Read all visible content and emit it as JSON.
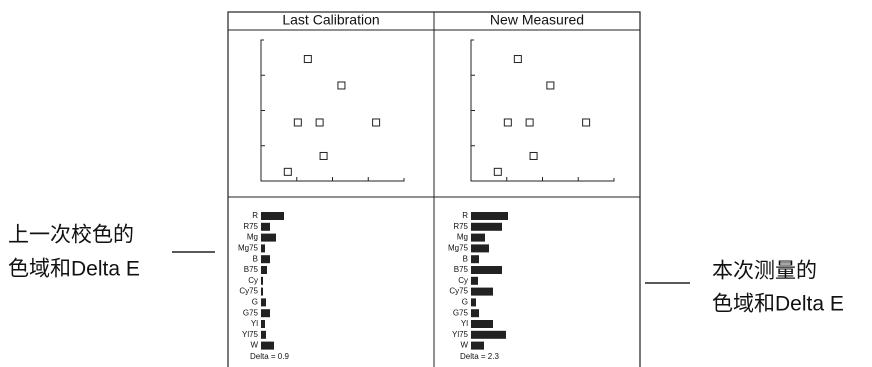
{
  "headers": [
    "Last Calibration",
    "New Measured"
  ],
  "panels": [
    {
      "scatter": {
        "xlim": [
          0,
          4
        ],
        "ylim": [
          0,
          4
        ],
        "xticks": [
          1,
          2,
          3
        ],
        "yticks": [
          1,
          2,
          3
        ],
        "x": [
          1.31,
          2.25,
          1.03,
          1.64,
          3.22,
          1.75,
          0.75
        ],
        "y": [
          3.46,
          2.71,
          1.66,
          1.66,
          1.66,
          0.71,
          0.26
        ]
      },
      "bars": {
        "categories": [
          "R",
          "R75",
          "Mg",
          "Mg75",
          "B",
          "B75",
          "Cy",
          "Cy75",
          "G",
          "G75",
          "Yl",
          "Yl75",
          "W"
        ],
        "values": [
          23,
          9,
          15,
          4,
          9,
          6,
          2,
          2,
          5,
          9,
          4,
          5,
          13
        ]
      },
      "delta": "Delta = 0.9"
    },
    {
      "scatter": {
        "xlim": [
          0,
          4
        ],
        "ylim": [
          0,
          4
        ],
        "xticks": [
          1,
          2,
          3
        ],
        "yticks": [
          1,
          2,
          3
        ],
        "x": [
          1.31,
          2.22,
          1.03,
          1.64,
          3.22,
          1.75,
          0.75
        ],
        "y": [
          3.46,
          2.71,
          1.66,
          1.66,
          1.66,
          0.71,
          0.26
        ]
      },
      "bars": {
        "categories": [
          "R",
          "R75",
          "Mg",
          "Mg75",
          "B",
          "B75",
          "Cy",
          "Cy75",
          "G",
          "G75",
          "Yl",
          "Yl75",
          "W"
        ],
        "values": [
          37,
          31,
          14,
          18,
          8,
          31,
          7,
          22,
          5,
          8,
          22,
          35,
          13
        ]
      },
      "delta": "Delta = 2.3"
    }
  ],
  "annotations": [
    {
      "lines": [
        "上一次校色的",
        "色域和Delta E"
      ]
    },
    {
      "lines": [
        "本次测量的",
        "色域和Delta E"
      ]
    }
  ]
}
